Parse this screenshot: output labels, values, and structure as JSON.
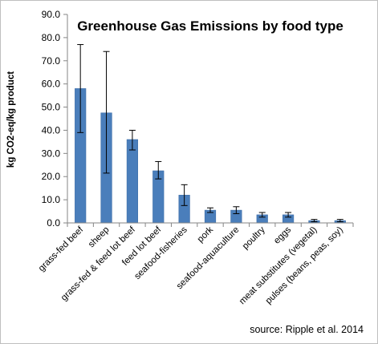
{
  "chart_data": {
    "type": "bar",
    "title": "Greenhouse Gas Emissions by food type",
    "xlabel": "",
    "ylabel": "kg CO2-eq/kg product",
    "ylim": [
      0,
      90
    ],
    "ytick_step": 10,
    "yticks": [
      "0.0",
      "10.0",
      "20.0",
      "30.0",
      "40.0",
      "50.0",
      "60.0",
      "70.0",
      "80.0",
      "90.0"
    ],
    "grid": false,
    "legend": "none",
    "bar_color": "#4a7ebb",
    "categories": [
      "grass-fed beef",
      "sheep",
      "grass-fed & feed lot beef",
      "feed lot beef",
      "seafood-fisheries",
      "pork",
      "seafood-aquaculture",
      "poultry",
      "eggs",
      "meat substitutes (vegetal)",
      "pulses (beans, peas, soy)"
    ],
    "values": [
      58,
      47.5,
      36,
      22.5,
      12,
      5.5,
      5.5,
      3.5,
      3.5,
      1,
      1
    ],
    "error_low": [
      39,
      21.5,
      31.5,
      19,
      7.5,
      4.5,
      4,
      2.5,
      2.5,
      0.5,
      0.5
    ],
    "error_high": [
      77,
      74,
      40,
      26.5,
      16.5,
      6.5,
      7,
      4.5,
      4.5,
      1.5,
      1.5
    ],
    "source": "source: Ripple et al. 2014"
  }
}
